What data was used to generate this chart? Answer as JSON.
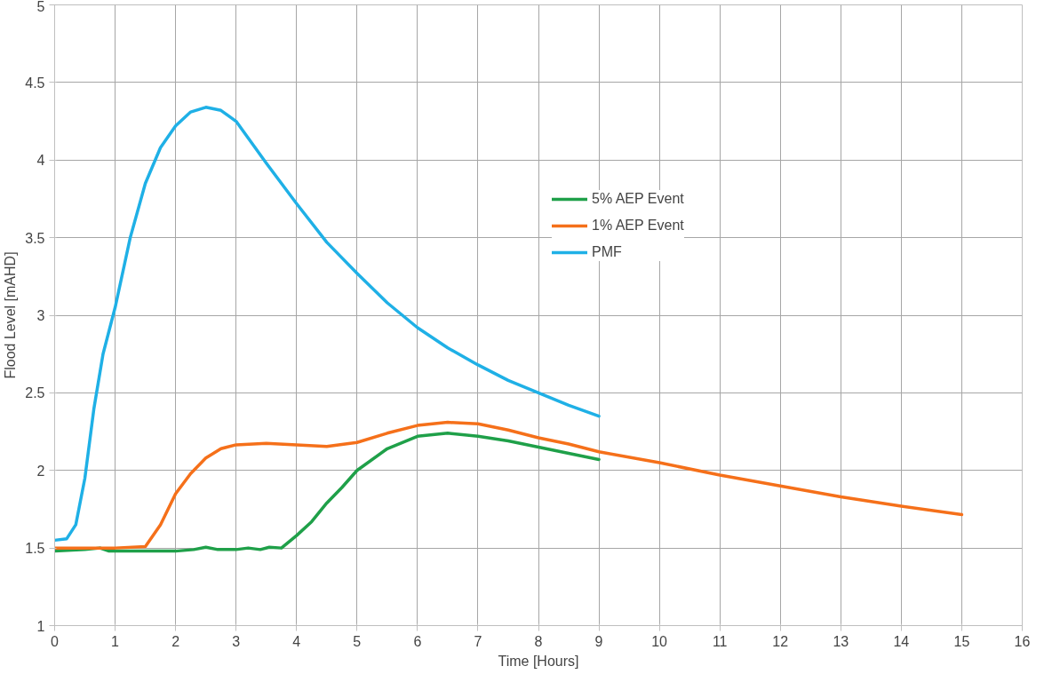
{
  "chart_data": {
    "type": "line",
    "xlabel": "Time [Hours]",
    "ylabel": "Flood Level [mAHD]",
    "xlim": [
      0,
      16
    ],
    "xticks": [
      0,
      1,
      2,
      3,
      4,
      5,
      6,
      7,
      8,
      9,
      10,
      11,
      12,
      13,
      14,
      15,
      16
    ],
    "ylim": [
      1,
      5
    ],
    "yticks": [
      1,
      1.5,
      2,
      2.5,
      3,
      3.5,
      4,
      4.5,
      5
    ],
    "grid": true,
    "legend": "top",
    "marker": "none",
    "line_style": "solid",
    "series": [
      {
        "name": "5% AEP Event",
        "color": "#1fa049",
        "x": [
          0,
          0.5,
          0.75,
          0.9,
          2,
          2.3,
          2.5,
          2.7,
          3,
          3.2,
          3.4,
          3.55,
          3.75,
          4,
          4.25,
          4.5,
          4.75,
          5,
          5.5,
          6,
          6.5,
          7,
          7.5,
          8,
          8.5,
          9
        ],
        "values": [
          1.48,
          1.49,
          1.5,
          1.48,
          1.48,
          1.49,
          1.505,
          1.49,
          1.49,
          1.5,
          1.49,
          1.505,
          1.5,
          1.58,
          1.67,
          1.79,
          1.89,
          2.0,
          2.14,
          2.22,
          2.24,
          2.22,
          2.19,
          2.15,
          2.11,
          2.07
        ]
      },
      {
        "name": "1% AEP Event",
        "color": "#f5701a",
        "x": [
          0,
          1,
          1.5,
          1.75,
          2,
          2.25,
          2.5,
          2.75,
          3,
          3.5,
          4,
          4.5,
          5,
          5.5,
          6,
          6.5,
          7,
          7.5,
          8,
          8.5,
          9,
          10,
          11,
          12,
          13,
          14,
          15
        ],
        "values": [
          1.5,
          1.5,
          1.51,
          1.65,
          1.85,
          1.98,
          2.08,
          2.14,
          2.165,
          2.175,
          2.165,
          2.155,
          2.18,
          2.24,
          2.29,
          2.31,
          2.3,
          2.26,
          2.21,
          2.17,
          2.12,
          2.05,
          1.97,
          1.9,
          1.83,
          1.77,
          1.715
        ]
      },
      {
        "name": "PMF",
        "color": "#1fb0e6",
        "x": [
          0,
          0.2,
          0.35,
          0.5,
          0.65,
          0.8,
          1,
          1.25,
          1.5,
          1.75,
          2,
          2.25,
          2.5,
          2.75,
          3,
          3.5,
          4,
          4.5,
          5,
          5.5,
          6,
          6.5,
          7,
          7.5,
          8,
          8.5,
          9
        ],
        "values": [
          1.55,
          1.56,
          1.65,
          1.95,
          2.4,
          2.75,
          3.05,
          3.5,
          3.85,
          4.08,
          4.22,
          4.31,
          4.34,
          4.32,
          4.25,
          3.98,
          3.72,
          3.47,
          3.27,
          3.08,
          2.92,
          2.79,
          2.68,
          2.58,
          2.5,
          2.42,
          2.35
        ]
      }
    ]
  }
}
